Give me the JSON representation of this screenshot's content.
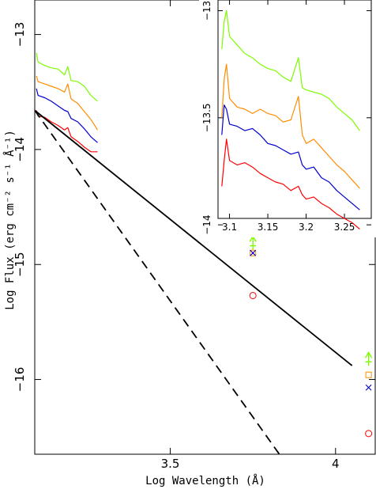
{
  "chart_data": [
    {
      "type": "line",
      "xlabel": "Log Wavelength (Å)",
      "ylabel": "Log Flux (erg cm⁻² s⁻¹ Å⁻¹)",
      "xlim": [
        3.09,
        4.12
      ],
      "ylim": [
        -16.65,
        -12.7
      ],
      "xticks": [
        3.5,
        4
      ],
      "xtick_labels": [
        "3.5",
        "4"
      ],
      "yticks": [
        -13,
        -14,
        -15,
        -16
      ],
      "ytick_labels": [
        "−13",
        "−14",
        "−15",
        "−16"
      ],
      "series": [
        {
          "color": "#7CFC00",
          "values": [
            [
              3.095,
              -13.16
            ],
            [
              3.1,
              -13.24
            ],
            [
              3.12,
              -13.27
            ],
            [
              3.14,
              -13.29
            ],
            [
              3.16,
              -13.3
            ],
            [
              3.18,
              -13.35
            ],
            [
              3.19,
              -13.28
            ],
            [
              3.2,
              -13.4
            ],
            [
              3.22,
              -13.41
            ],
            [
              3.24,
              -13.45
            ],
            [
              3.26,
              -13.53
            ],
            [
              3.28,
              -13.58
            ]
          ]
        },
        {
          "color": "#FF8C00",
          "values": [
            [
              3.095,
              -13.36
            ],
            [
              3.1,
              -13.41
            ],
            [
              3.12,
              -13.43
            ],
            [
              3.14,
              -13.45
            ],
            [
              3.16,
              -13.47
            ],
            [
              3.18,
              -13.5
            ],
            [
              3.19,
              -13.43
            ],
            [
              3.2,
              -13.56
            ],
            [
              3.22,
              -13.6
            ],
            [
              3.24,
              -13.67
            ],
            [
              3.26,
              -13.74
            ],
            [
              3.28,
              -13.83
            ]
          ]
        },
        {
          "color": "#0000CD",
          "values": [
            [
              3.095,
              -13.47
            ],
            [
              3.1,
              -13.53
            ],
            [
              3.12,
              -13.55
            ],
            [
              3.14,
              -13.58
            ],
            [
              3.16,
              -13.62
            ],
            [
              3.18,
              -13.66
            ],
            [
              3.19,
              -13.67
            ],
            [
              3.2,
              -13.73
            ],
            [
              3.22,
              -13.76
            ],
            [
              3.24,
              -13.82
            ],
            [
              3.26,
              -13.89
            ],
            [
              3.28,
              -13.94
            ]
          ]
        },
        {
          "color": "#FF0000",
          "values": [
            [
              3.095,
              -13.66
            ],
            [
              3.1,
              -13.71
            ],
            [
              3.12,
              -13.72
            ],
            [
              3.14,
              -13.76
            ],
            [
              3.16,
              -13.79
            ],
            [
              3.18,
              -13.83
            ],
            [
              3.19,
              -13.81
            ],
            [
              3.2,
              -13.89
            ],
            [
              3.22,
              -13.93
            ],
            [
              3.24,
              -13.98
            ],
            [
              3.26,
              -14.02
            ],
            [
              3.28,
              -14.02
            ]
          ]
        }
      ],
      "fits": [
        {
          "style": "solid",
          "color": "#000000",
          "from": [
            3.09,
            -13.66
          ],
          "to": [
            4.05,
            -15.88
          ]
        },
        {
          "style": "dashed",
          "color": "#000000",
          "from": [
            3.09,
            -13.66
          ],
          "to": [
            3.83,
            -16.65
          ]
        }
      ],
      "photometry": [
        {
          "marker": "arrow-up",
          "color": "#7CFC00",
          "x": 3.75,
          "y": -14.83
        },
        {
          "marker": "square",
          "color": "#FF8C00",
          "x": 3.75,
          "y": -14.9
        },
        {
          "marker": "x",
          "color": "#0000CD",
          "x": 3.75,
          "y": -14.9
        },
        {
          "marker": "circle",
          "color": "#FF0000",
          "x": 3.75,
          "y": -15.27
        },
        {
          "marker": "arrow-up",
          "color": "#7CFC00",
          "x": 4.1,
          "y": -15.84
        },
        {
          "marker": "square",
          "color": "#FF8C00",
          "x": 4.1,
          "y": -15.96
        },
        {
          "marker": "x",
          "color": "#0000CD",
          "x": 4.1,
          "y": -16.07
        },
        {
          "marker": "circle",
          "color": "#FF0000",
          "x": 4.1,
          "y": -16.47
        }
      ]
    },
    {
      "type": "line",
      "inset": true,
      "xlim": [
        3.085,
        3.285
      ],
      "ylim": [
        -13.97,
        -12.95
      ],
      "xticks": [
        3.1,
        3.15,
        3.2,
        3.25
      ],
      "xtick_labels": [
        "3.1",
        "3.15",
        "3.2",
        "3.25"
      ],
      "yticks": [
        -13,
        -13.5,
        -14
      ],
      "ytick_labels": [
        "−13",
        "−13.5",
        "−14"
      ],
      "series": [
        {
          "color": "#7CFC00",
          "values": [
            [
              3.09,
              -13.18
            ],
            [
              3.093,
              -13.05
            ],
            [
              3.096,
              -13.0
            ],
            [
              3.1,
              -13.12
            ],
            [
              3.11,
              -13.16
            ],
            [
              3.12,
              -13.2
            ],
            [
              3.13,
              -13.22
            ],
            [
              3.14,
              -13.25
            ],
            [
              3.15,
              -13.27
            ],
            [
              3.16,
              -13.28
            ],
            [
              3.17,
              -13.31
            ],
            [
              3.18,
              -13.33
            ],
            [
              3.19,
              -13.22
            ],
            [
              3.195,
              -13.36
            ],
            [
              3.2,
              -13.37
            ],
            [
              3.21,
              -13.38
            ],
            [
              3.22,
              -13.39
            ],
            [
              3.23,
              -13.41
            ],
            [
              3.24,
              -13.45
            ],
            [
              3.25,
              -13.48
            ],
            [
              3.26,
              -13.51
            ],
            [
              3.27,
              -13.56
            ]
          ]
        },
        {
          "color": "#FF8C00",
          "values": [
            [
              3.09,
              -13.5
            ],
            [
              3.093,
              -13.32
            ],
            [
              3.096,
              -13.25
            ],
            [
              3.1,
              -13.41
            ],
            [
              3.11,
              -13.45
            ],
            [
              3.12,
              -13.46
            ],
            [
              3.13,
              -13.48
            ],
            [
              3.14,
              -13.46
            ],
            [
              3.15,
              -13.48
            ],
            [
              3.16,
              -13.49
            ],
            [
              3.17,
              -13.52
            ],
            [
              3.18,
              -13.51
            ],
            [
              3.19,
              -13.4
            ],
            [
              3.195,
              -13.58
            ],
            [
              3.2,
              -13.62
            ],
            [
              3.21,
              -13.6
            ],
            [
              3.22,
              -13.64
            ],
            [
              3.23,
              -13.68
            ],
            [
              3.24,
              -13.72
            ],
            [
              3.25,
              -13.75
            ],
            [
              3.26,
              -13.79
            ],
            [
              3.27,
              -13.83
            ]
          ]
        },
        {
          "color": "#0000CD",
          "values": [
            [
              3.09,
              -13.58
            ],
            [
              3.093,
              -13.44
            ],
            [
              3.096,
              -13.46
            ],
            [
              3.1,
              -13.53
            ],
            [
              3.11,
              -13.54
            ],
            [
              3.12,
              -13.56
            ],
            [
              3.13,
              -13.55
            ],
            [
              3.14,
              -13.58
            ],
            [
              3.15,
              -13.62
            ],
            [
              3.16,
              -13.63
            ],
            [
              3.17,
              -13.65
            ],
            [
              3.18,
              -13.67
            ],
            [
              3.19,
              -13.66
            ],
            [
              3.195,
              -13.72
            ],
            [
              3.2,
              -13.74
            ],
            [
              3.21,
              -13.73
            ],
            [
              3.22,
              -13.78
            ],
            [
              3.23,
              -13.8
            ],
            [
              3.24,
              -13.84
            ],
            [
              3.25,
              -13.87
            ],
            [
              3.26,
              -13.9
            ],
            [
              3.27,
              -13.93
            ]
          ]
        },
        {
          "color": "#FF0000",
          "values": [
            [
              3.09,
              -13.82
            ],
            [
              3.093,
              -13.7
            ],
            [
              3.096,
              -13.6
            ],
            [
              3.1,
              -13.7
            ],
            [
              3.11,
              -13.72
            ],
            [
              3.12,
              -13.71
            ],
            [
              3.13,
              -13.73
            ],
            [
              3.14,
              -13.76
            ],
            [
              3.15,
              -13.78
            ],
            [
              3.16,
              -13.8
            ],
            [
              3.17,
              -13.81
            ],
            [
              3.18,
              -13.84
            ],
            [
              3.19,
              -13.82
            ],
            [
              3.195,
              -13.86
            ],
            [
              3.2,
              -13.88
            ],
            [
              3.21,
              -13.87
            ],
            [
              3.22,
              -13.9
            ],
            [
              3.23,
              -13.92
            ],
            [
              3.24,
              -13.95
            ],
            [
              3.25,
              -13.97
            ],
            [
              3.26,
              -13.99
            ],
            [
              3.27,
              -14.02
            ]
          ]
        }
      ]
    }
  ]
}
